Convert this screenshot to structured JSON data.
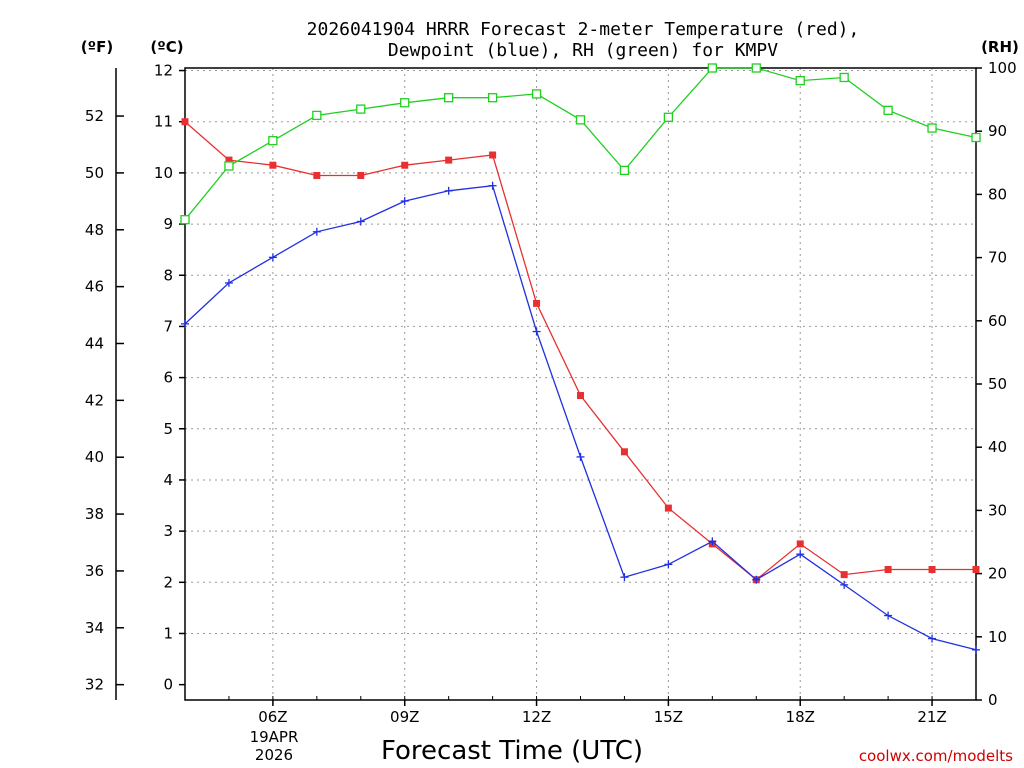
{
  "chart_data": {
    "type": "line",
    "title_line1": "2026041904 HRRR Forecast 2-meter Temperature (red),",
    "title_line2": "Dewpoint (blue), RH (green) for KMPV",
    "xlabel": "Forecast Time (UTC)",
    "credit": "coolwx.com/modelts",
    "left_unit_f": "(ºF)",
    "left_unit_c": "(ºC)",
    "right_unit": "(RH)",
    "x_hours": [
      4,
      5,
      6,
      7,
      8,
      9,
      10,
      11,
      12,
      13,
      14,
      15,
      16,
      17,
      18,
      19,
      20,
      21,
      22
    ],
    "x_range": [
      4,
      22
    ],
    "x_ticks": [
      {
        "hour": 6,
        "label": "06Z"
      },
      {
        "hour": 9,
        "label": "09Z"
      },
      {
        "hour": 12,
        "label": "12Z"
      },
      {
        "hour": 15,
        "label": "15Z"
      },
      {
        "hour": 18,
        "label": "18Z"
      },
      {
        "hour": 21,
        "label": "21Z"
      }
    ],
    "date_label_line1": "19APR",
    "date_label_line2": "2026",
    "celsius_range": [
      -0.3,
      12.05
    ],
    "celsius_ticks": [
      "0",
      "1",
      "2",
      "3",
      "4",
      "5",
      "6",
      "7",
      "8",
      "9",
      "10",
      "11",
      "12"
    ],
    "fahrenheit_ticks": [
      "32",
      "34",
      "36",
      "38",
      "40",
      "42",
      "44",
      "46",
      "48",
      "50",
      "52"
    ],
    "rh_range": [
      0,
      100
    ],
    "rh_ticks": [
      "0",
      "10",
      "20",
      "30",
      "40",
      "50",
      "60",
      "70",
      "80",
      "90",
      "100"
    ],
    "series": [
      {
        "name": "Temperature",
        "color": "#e83030",
        "marker": "filled-square",
        "axis": "celsius",
        "values": [
          11.0,
          10.25,
          10.15,
          9.95,
          9.95,
          10.15,
          10.25,
          10.35,
          7.45,
          5.65,
          4.55,
          3.45,
          2.75,
          2.05,
          2.75,
          2.15,
          2.25,
          2.25,
          2.25
        ]
      },
      {
        "name": "Dewpoint",
        "color": "#2030e0",
        "marker": "plus",
        "axis": "celsius",
        "values": [
          7.05,
          7.85,
          8.35,
          8.85,
          9.05,
          9.45,
          9.65,
          9.75,
          6.9,
          4.45,
          2.1,
          2.35,
          2.8,
          2.05,
          2.55,
          1.95,
          1.35,
          0.9,
          0.68
        ]
      },
      {
        "name": "RH",
        "color": "#20d020",
        "marker": "open-square",
        "axis": "rh",
        "values": [
          76,
          84.5,
          88.5,
          92.5,
          93.5,
          94.5,
          95.3,
          95.3,
          95.9,
          91.8,
          83.8,
          92.2,
          100,
          100,
          98,
          98.5,
          93.3,
          90.5,
          89
        ]
      }
    ]
  }
}
